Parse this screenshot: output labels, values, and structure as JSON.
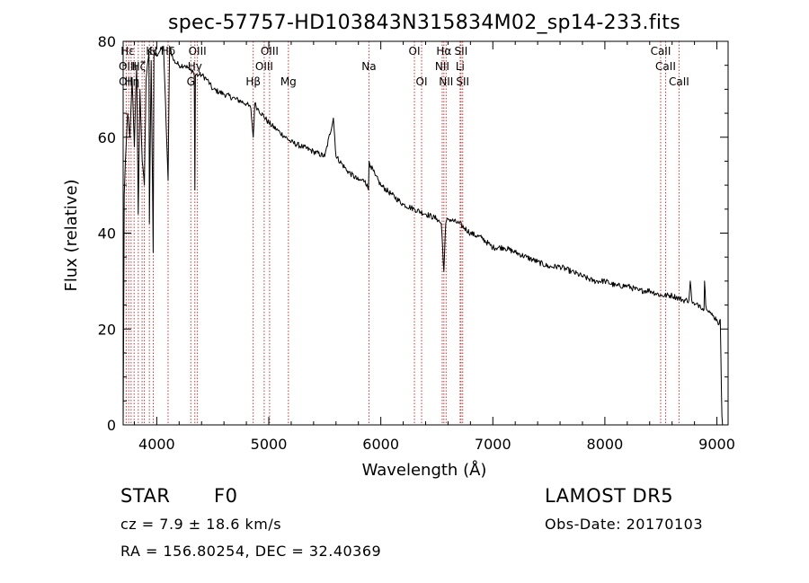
{
  "chart_data": {
    "type": "line",
    "title": "spec-57757-HD103843N315834M02_sp14-233.fits",
    "xlabel": "Wavelength (Å)",
    "ylabel": "Flux (relative)",
    "xlim": [
      3700,
      9100
    ],
    "ylim": [
      0,
      80
    ],
    "x_ticks": [
      4000,
      5000,
      6000,
      7000,
      8000,
      9000
    ],
    "x_tick_labels": [
      "4000",
      "5000",
      "6000",
      "7000",
      "8000",
      "9000"
    ],
    "y_ticks": [
      0,
      20,
      40,
      60,
      80
    ],
    "y_tick_labels": [
      "0",
      "20",
      "40",
      "60",
      "80"
    ],
    "grid": false,
    "series": [
      {
        "style": "solid black",
        "x": [
          3700,
          3705,
          3710,
          3720,
          3740,
          3760,
          3780,
          3800,
          3820,
          3835,
          3850,
          3870,
          3889,
          3905,
          3930,
          3934,
          3950,
          3968,
          3975,
          3990,
          4030,
          4060,
          4101,
          4115,
          4150,
          4200,
          4250,
          4300,
          4320,
          4335,
          4340,
          4345,
          4360,
          4380,
          4400,
          4450,
          4500,
          4600,
          4700,
          4800,
          4840,
          4861,
          4875,
          4900,
          5000,
          5100,
          5200,
          5300,
          5400,
          5500,
          5577,
          5600,
          5700,
          5800,
          5860,
          5890,
          5895,
          5910,
          5950,
          6000,
          6100,
          6200,
          6300,
          6400,
          6500,
          6540,
          6563,
          6580,
          6600,
          6700,
          6800,
          6900,
          7000,
          7100,
          7200,
          7300,
          7400,
          7500,
          7600,
          7700,
          7800,
          7900,
          8000,
          8100,
          8200,
          8300,
          8400,
          8500,
          8600,
          8700,
          8750,
          8762,
          8775,
          8800,
          8850,
          8885,
          8890,
          8900,
          8950,
          9000,
          9020,
          9030,
          9040,
          9045,
          9050
        ],
        "y": [
          0,
          22,
          48,
          55,
          65,
          60,
          72,
          58,
          75,
          44,
          70,
          55,
          50,
          72,
          78,
          42,
          76,
          36,
          78,
          77,
          78,
          79,
          51,
          79,
          76,
          75,
          75,
          74,
          74,
          73,
          49,
          73,
          73,
          73,
          73,
          72,
          70,
          69,
          68,
          67,
          66,
          60,
          67,
          66,
          63,
          61,
          59,
          58,
          57,
          56,
          64,
          56,
          53,
          51,
          51,
          49,
          55,
          54,
          52,
          50,
          48,
          46,
          45,
          44,
          43,
          42,
          32,
          42,
          43,
          42,
          40,
          39,
          37,
          37,
          36,
          35,
          34,
          33,
          33,
          32,
          31,
          30,
          30,
          29,
          29,
          28,
          28,
          27,
          27,
          26,
          26,
          30,
          26,
          25,
          25,
          24,
          30,
          25,
          23,
          22,
          21,
          22,
          8,
          2,
          0
        ]
      }
    ],
    "lines": [
      {
        "x": 3727,
        "label": "OII",
        "row": 3
      },
      {
        "x": 3750,
        "label": "",
        "row": 0
      },
      {
        "x": 3771,
        "label": "",
        "row": 0
      },
      {
        "x": 3798,
        "label": "",
        "row": 0
      },
      {
        "x": 3835,
        "label": "",
        "row": 0
      },
      {
        "x": 3869,
        "label": "",
        "row": 0
      },
      {
        "x": 3889,
        "label": "",
        "row": 0
      },
      {
        "x": 3934,
        "label": "K",
        "row": 1
      },
      {
        "x": 3969,
        "label": "H",
        "row": 1
      },
      {
        "x": 4101,
        "label": "Hδ",
        "row": 1
      },
      {
        "x": 4304,
        "label": "G",
        "row": 3
      },
      {
        "x": 4340,
        "label": "Hγ",
        "row": 2
      },
      {
        "x": 4363,
        "label": "OIII",
        "row": 1
      },
      {
        "x": 4861,
        "label": "Hβ",
        "row": 3
      },
      {
        "x": 4959,
        "label": "OIII",
        "row": 2
      },
      {
        "x": 5007,
        "label": "OIII",
        "row": 1
      },
      {
        "x": 5175,
        "label": "Mg",
        "row": 3
      },
      {
        "x": 5894,
        "label": "Na",
        "row": 2
      },
      {
        "x": 6300,
        "label": "OI",
        "row": 1
      },
      {
        "x": 6364,
        "label": "OI",
        "row": 3
      },
      {
        "x": 6548,
        "label": "NII",
        "row": 2
      },
      {
        "x": 6563,
        "label": "Hα",
        "row": 1
      },
      {
        "x": 6583,
        "label": "NII",
        "row": 3
      },
      {
        "x": 6708,
        "label": "Li",
        "row": 2
      },
      {
        "x": 6716,
        "label": "SII",
        "row": 1
      },
      {
        "x": 6731,
        "label": "SII",
        "row": 3
      },
      {
        "x": 8498,
        "label": "CaII",
        "row": 1
      },
      {
        "x": 8542,
        "label": "CaII",
        "row": 2
      },
      {
        "x": 8662,
        "label": "CaII",
        "row": 3
      }
    ],
    "extra_labels": [
      {
        "x": 3740,
        "text": "Hε",
        "row": 1
      },
      {
        "x": 3740,
        "text": "OIII",
        "row": 2
      },
      {
        "x": 3840,
        "text": "Hζ",
        "row": 2
      },
      {
        "x": 3780,
        "text": "Hη",
        "row": 3
      }
    ]
  },
  "info": {
    "object_type": "STAR",
    "subclass": "F0",
    "survey": "LAMOST DR5",
    "redshift": "cz = 7.9 ± 18.6 km/s",
    "obs_date": "Obs-Date: 20170103",
    "coords": "RA = 156.80254, DEC =  32.40369"
  },
  "colors": {
    "spectrum": "#000000",
    "line_markers": "#cc3333",
    "background": "#ffffff"
  }
}
